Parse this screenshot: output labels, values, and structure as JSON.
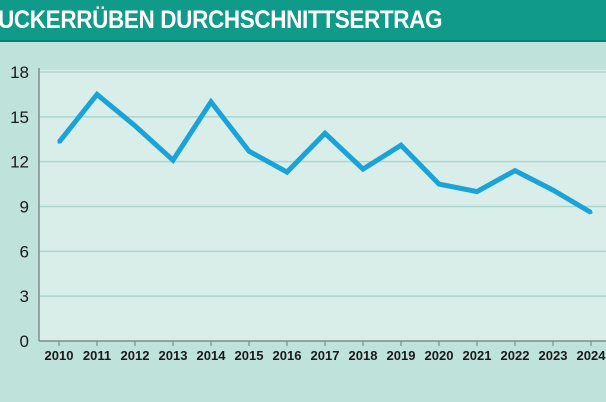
{
  "header": {
    "title": "UCKERRÜBEN DURCHSCHNITTSERTRAG"
  },
  "colors": {
    "header_bg": "#0f9a8a",
    "plot_bg": "#d9eee9",
    "grid": "#a9d6cd",
    "line": "#1aa3d9",
    "page_bg": "#bfe2db"
  },
  "chart_data": {
    "type": "line",
    "title": "UCKERRÜBEN DURCHSCHNITTSERTRAG",
    "xlabel": "",
    "ylabel": "",
    "categories": [
      "2010",
      "2011",
      "2012",
      "2013",
      "2014",
      "2015",
      "2016",
      "2017",
      "2018",
      "2019",
      "2020",
      "2021",
      "2022",
      "2023",
      "2024"
    ],
    "series": [
      {
        "name": "Durchschnittsertrag",
        "values": [
          13.3,
          16.5,
          14.4,
          12.1,
          16.0,
          12.7,
          11.3,
          13.9,
          11.5,
          13.1,
          10.5,
          10.0,
          11.4,
          10.1,
          8.6
        ]
      }
    ],
    "yticks": [
      0,
      3,
      6,
      9,
      12,
      15,
      18
    ],
    "ylim": [
      0,
      18
    ],
    "grid": true
  }
}
